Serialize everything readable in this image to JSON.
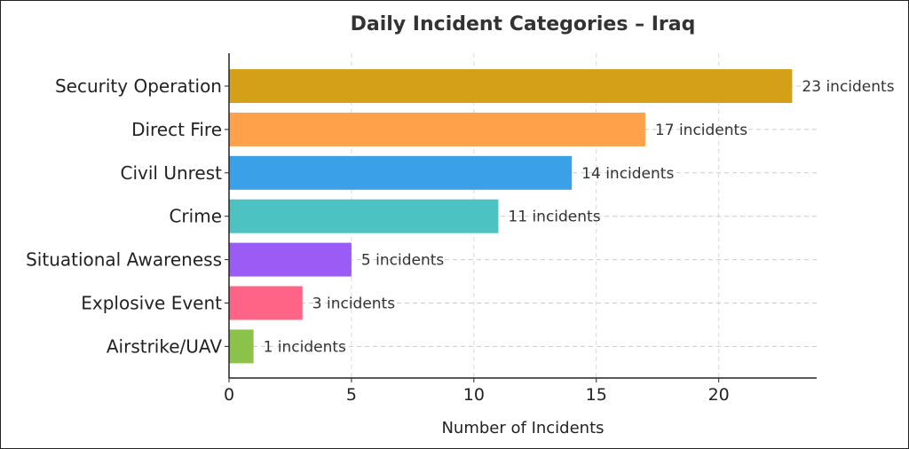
{
  "chart_data": {
    "type": "bar",
    "orientation": "horizontal",
    "title": "Daily Incident Categories – Iraq",
    "xlabel": "Number of Incidents",
    "ylabel": "",
    "xlim": [
      0,
      24
    ],
    "xticks": [
      0,
      5,
      10,
      15,
      20
    ],
    "grid": true,
    "categories": [
      "Security Operation",
      "Direct Fire",
      "Civil Unrest",
      "Crime",
      "Situational Awareness",
      "Explosive Event",
      "Airstrike/UAV"
    ],
    "values": [
      23,
      17,
      14,
      11,
      5,
      3,
      1
    ],
    "data_labels": [
      "23 incidents",
      "17 incidents",
      "14 incidents",
      "11 incidents",
      "5 incidents",
      "3 incidents",
      "1 incidents"
    ],
    "colors": [
      "#d4a017",
      "#ffa04a",
      "#3aa0e8",
      "#4cc2c2",
      "#9b5cf6",
      "#ff6486",
      "#8bc34a"
    ]
  }
}
